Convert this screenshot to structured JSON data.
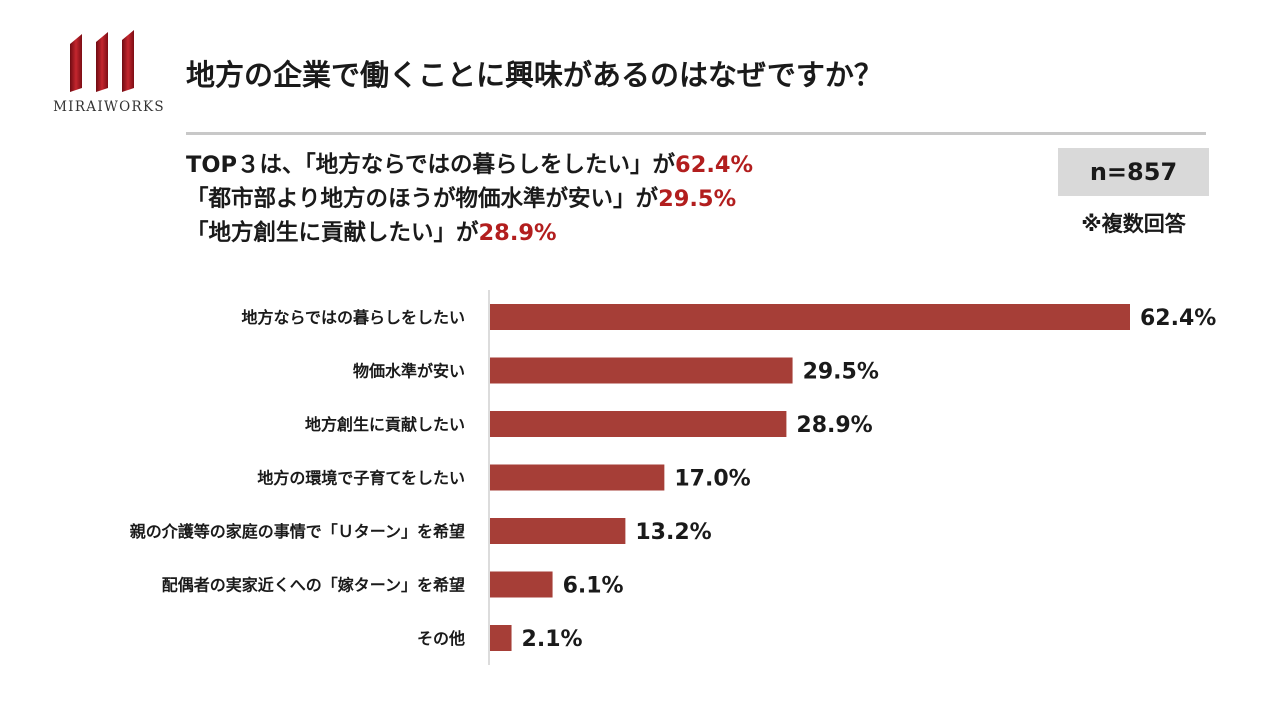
{
  "brand": {
    "name": "MIRAIWORKS",
    "color": "#a0141e"
  },
  "title": "地方の企業で働くことに興味があるのはなぜですか？",
  "summary": {
    "lines": [
      {
        "text": "TOP３は、「地方ならではの暮らしをしたい」が",
        "value": "62.4%"
      },
      {
        "text": "「都市部より地方のほうが物価水準が安い」が",
        "value": "29.5%"
      },
      {
        "text": "「地方創生に貢献したい」が",
        "value": "28.9%"
      }
    ],
    "highlight_color": "#b21e1e"
  },
  "sample": {
    "n": "n=857",
    "note": "※複数回答"
  },
  "chart_data": {
    "type": "bar",
    "orientation": "horizontal",
    "categories": [
      "地方ならではの暮らしをしたい",
      "物価水準が安い",
      "地方創生に貢献したい",
      "地方の環境で子育てをしたい",
      "親の介護等の家庭の事情で「Ｕターン」を希望",
      "配偶者の実家近くへの「嫁ターン」を希望",
      "その他"
    ],
    "values": [
      62.4,
      29.5,
      28.9,
      17.0,
      13.2,
      6.1,
      2.1
    ],
    "value_labels": [
      "62.4%",
      "29.5%",
      "28.9%",
      "17.0%",
      "13.2%",
      "6.1%",
      "2.1%"
    ],
    "unit": "%",
    "bar_color": "#a63e37",
    "grid": false
  }
}
